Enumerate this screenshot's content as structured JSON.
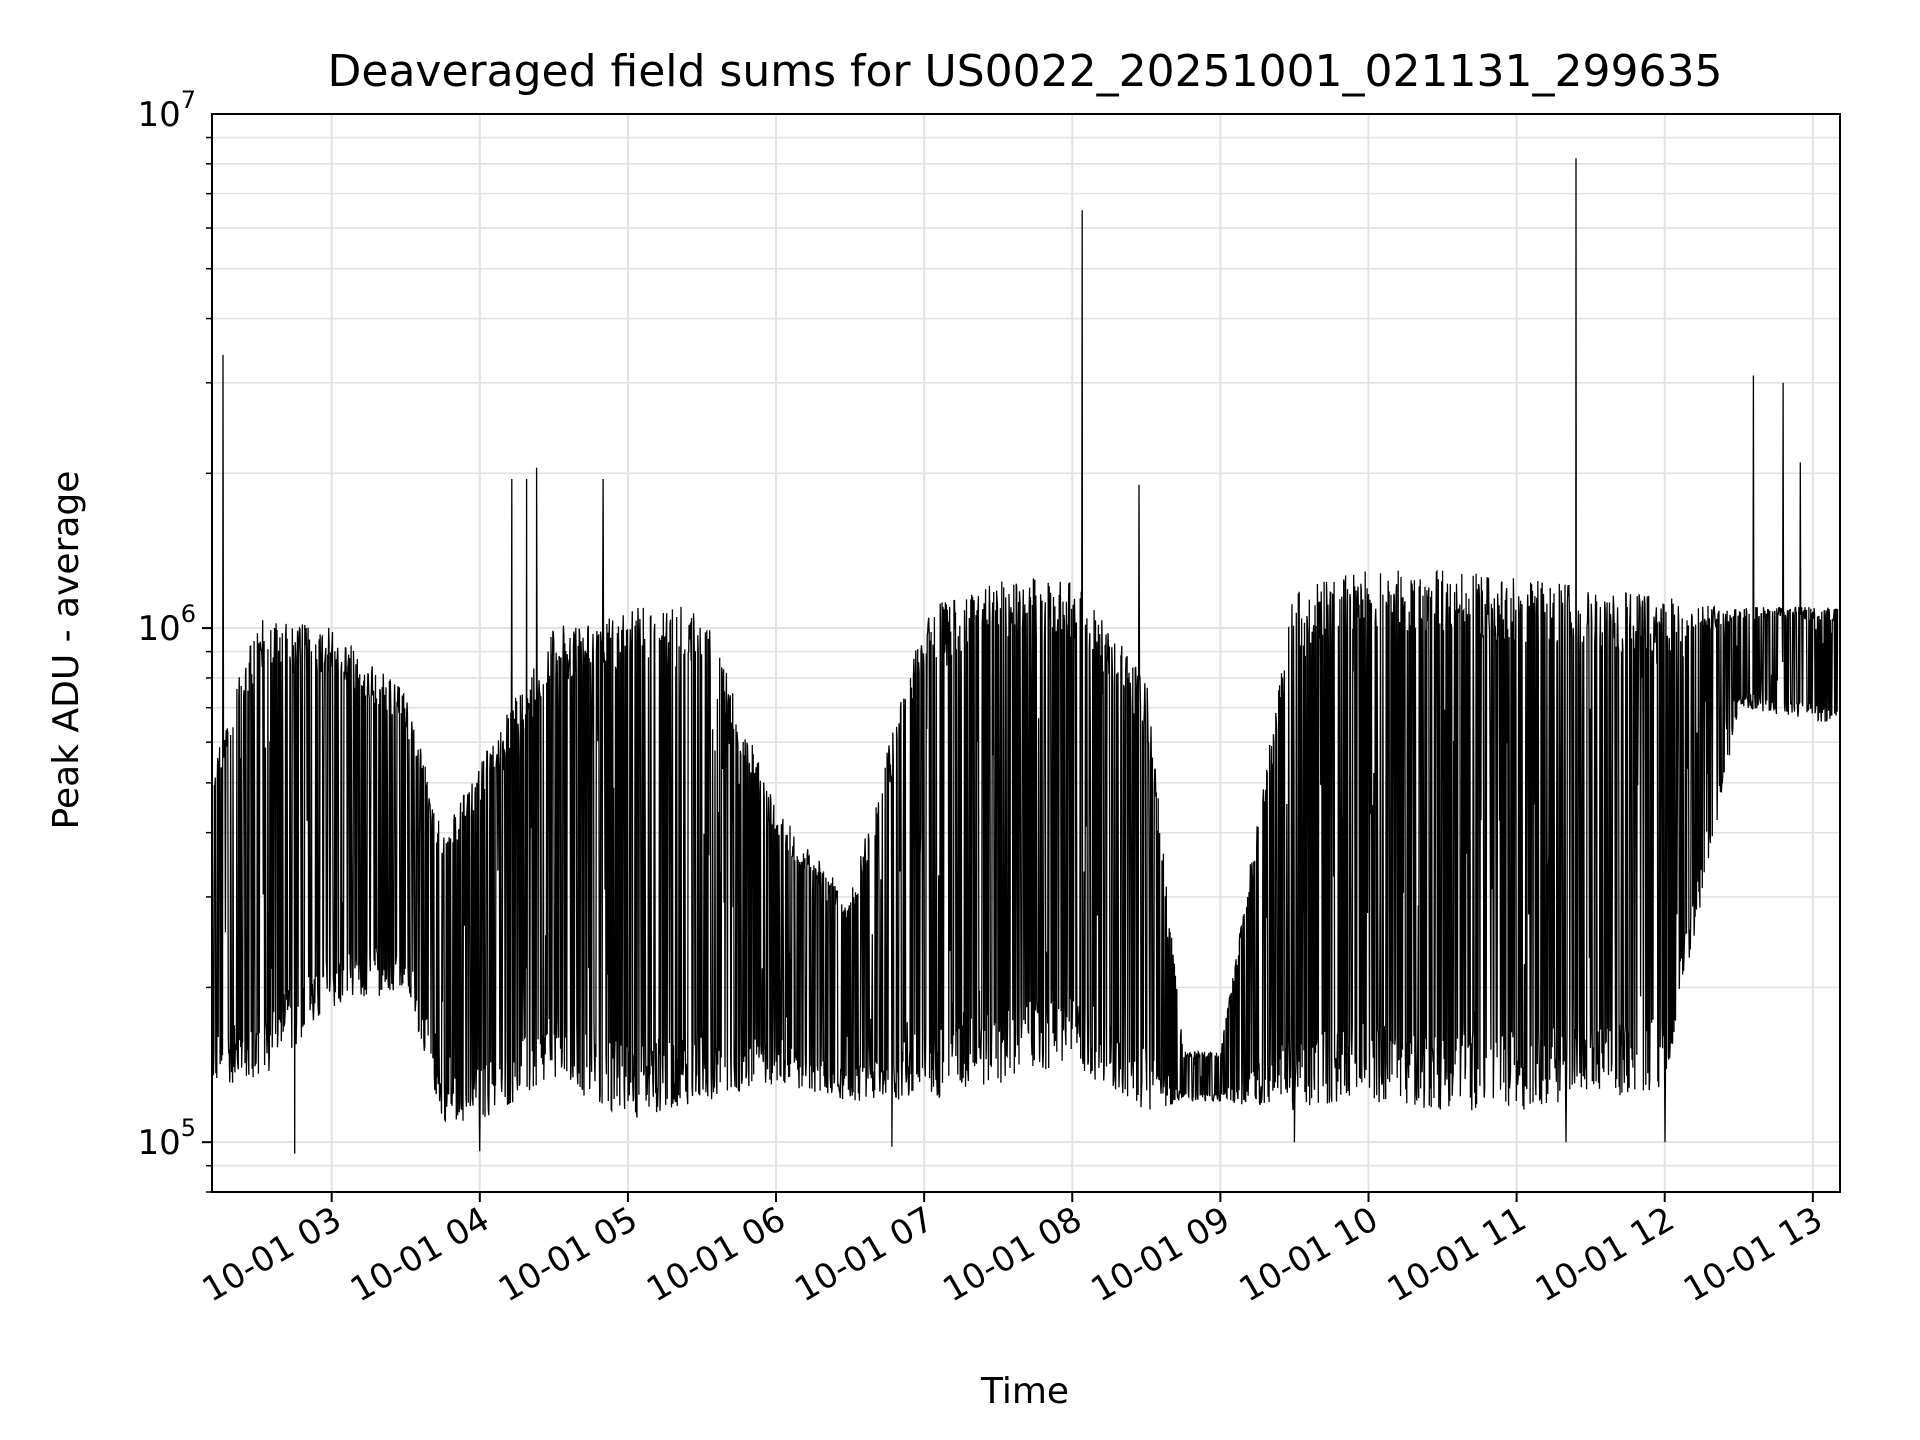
{
  "chart_data": {
    "type": "line",
    "title": "Deaveraged field sums for US0022_20251001_021131_299635",
    "xlabel": "Time",
    "ylabel": "Peak ADU - average",
    "yscale": "log",
    "ylim": [
      80000,
      10000000
    ],
    "xlim": [
      "2025-10-01 02:11:31",
      "2025-10-01 13:11:00"
    ],
    "grid": true,
    "line_color": "#000000",
    "x_ticks": [
      {
        "value": "2025-10-01 03:00",
        "label": "10-01 03"
      },
      {
        "value": "2025-10-01 04:00",
        "label": "10-01 04"
      },
      {
        "value": "2025-10-01 05:00",
        "label": "10-01 05"
      },
      {
        "value": "2025-10-01 06:00",
        "label": "10-01 06"
      },
      {
        "value": "2025-10-01 07:00",
        "label": "10-01 07"
      },
      {
        "value": "2025-10-01 08:00",
        "label": "10-01 08"
      },
      {
        "value": "2025-10-01 09:00",
        "label": "10-01 09"
      },
      {
        "value": "2025-10-01 10:00",
        "label": "10-01 10"
      },
      {
        "value": "2025-10-01 11:00",
        "label": "10-01 11"
      },
      {
        "value": "2025-10-01 12:00",
        "label": "10-01 12"
      },
      {
        "value": "2025-10-01 13:00",
        "label": "10-01 13"
      }
    ],
    "y_ticks": [
      {
        "value": 100000,
        "base": "10",
        "exp": "5"
      },
      {
        "value": 1000000,
        "base": "10",
        "exp": "6"
      },
      {
        "value": 10000000,
        "base": "10",
        "exp": "7"
      }
    ],
    "envelope": [
      {
        "time": "2025-10-01 02:12",
        "low": 130000,
        "high": 550000
      },
      {
        "time": "2025-10-01 02:30",
        "low": 130000,
        "high": 1050000
      },
      {
        "time": "2025-10-01 03:00",
        "low": 180000,
        "high": 1000000
      },
      {
        "time": "2025-10-01 03:30",
        "low": 200000,
        "high": 750000
      },
      {
        "time": "2025-10-01 03:45",
        "low": 110000,
        "high": 400000
      },
      {
        "time": "2025-10-01 04:00",
        "low": 110000,
        "high": 550000
      },
      {
        "time": "2025-10-01 04:30",
        "low": 130000,
        "high": 1000000
      },
      {
        "time": "2025-10-01 05:00",
        "low": 110000,
        "high": 1100000
      },
      {
        "time": "2025-10-01 05:30",
        "low": 120000,
        "high": 1100000
      },
      {
        "time": "2025-10-01 06:00",
        "low": 130000,
        "high": 450000
      },
      {
        "time": "2025-10-01 06:30",
        "low": 120000,
        "high": 300000
      },
      {
        "time": "2025-10-01 07:00",
        "low": 120000,
        "high": 1100000
      },
      {
        "time": "2025-10-01 07:30",
        "low": 130000,
        "high": 1250000
      },
      {
        "time": "2025-10-01 08:00",
        "low": 140000,
        "high": 1250000
      },
      {
        "time": "2025-10-01 08:30",
        "low": 115000,
        "high": 800000
      },
      {
        "time": "2025-10-01 08:45",
        "low": 120000,
        "high": 150000
      },
      {
        "time": "2025-10-01 09:00",
        "low": 120000,
        "high": 150000
      },
      {
        "time": "2025-10-01 09:30",
        "low": 115000,
        "high": 1200000
      },
      {
        "time": "2025-10-01 10:00",
        "low": 120000,
        "high": 1300000
      },
      {
        "time": "2025-10-01 10:30",
        "low": 115000,
        "high": 1300000
      },
      {
        "time": "2025-10-01 11:00",
        "low": 115000,
        "high": 1250000
      },
      {
        "time": "2025-10-01 11:30",
        "low": 120000,
        "high": 1200000
      },
      {
        "time": "2025-10-01 12:00",
        "low": 125000,
        "high": 1150000
      },
      {
        "time": "2025-10-01 12:30",
        "low": 700000,
        "high": 1100000
      },
      {
        "time": "2025-10-01 13:10",
        "low": 650000,
        "high": 1100000
      }
    ],
    "spikes": [
      {
        "time": "2025-10-01 02:16",
        "value": 3400000
      },
      {
        "time": "2025-10-01 04:13",
        "value": 1950000
      },
      {
        "time": "2025-10-01 04:19",
        "value": 1950000
      },
      {
        "time": "2025-10-01 04:23",
        "value": 2050000
      },
      {
        "time": "2025-10-01 04:50",
        "value": 1950000
      },
      {
        "time": "2025-10-01 08:04",
        "value": 6500000
      },
      {
        "time": "2025-10-01 08:27",
        "value": 1900000
      },
      {
        "time": "2025-10-01 11:24",
        "value": 8200000
      },
      {
        "time": "2025-10-01 12:36",
        "value": 3100000
      },
      {
        "time": "2025-10-01 12:48",
        "value": 3000000
      },
      {
        "time": "2025-10-01 12:55",
        "value": 2100000
      }
    ],
    "dips": [
      {
        "time": "2025-10-01 02:45",
        "value": 95000
      },
      {
        "time": "2025-10-01 04:00",
        "value": 96000
      },
      {
        "time": "2025-10-01 06:47",
        "value": 98000
      },
      {
        "time": "2025-10-01 09:30",
        "value": 100000
      },
      {
        "time": "2025-10-01 11:20",
        "value": 100000
      },
      {
        "time": "2025-10-01 12:00",
        "value": 100000
      }
    ]
  }
}
